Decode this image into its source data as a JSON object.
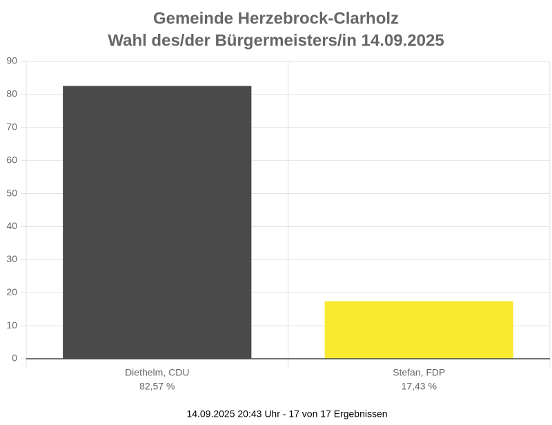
{
  "chart_data": {
    "type": "bar",
    "title": [
      "Gemeinde Herzebrock-Clarholz",
      "Wahl des/der Bürgermeisters/in 14.09.2025"
    ],
    "categories": [
      "Diethelm, CDU",
      "Stefan, FDP"
    ],
    "values": [
      82.57,
      17.43
    ],
    "value_labels": [
      "82,57 %",
      "17,43 %"
    ],
    "colors": [
      "#4a4a4a",
      "#f9e930"
    ],
    "ylim": [
      0,
      90
    ],
    "yticks": [
      0,
      10,
      20,
      30,
      40,
      50,
      60,
      70,
      80,
      90
    ],
    "grid": true,
    "footnote": "14.09.2025 20:43 Uhr - 17 von 17 Ergebnissen"
  }
}
